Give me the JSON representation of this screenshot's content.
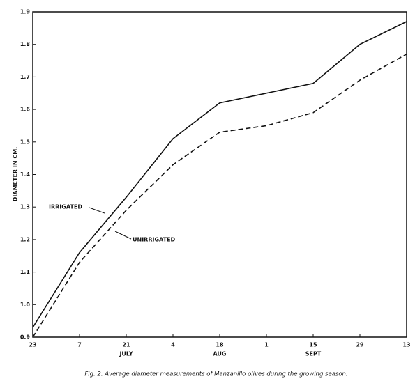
{
  "chart_data": {
    "type": "line",
    "caption": "Fig. 2. Average diameter measurements of Manzanillo olives during the growing season.",
    "ylabel": "DIAMETER IN CM.",
    "categories": [
      "23",
      "7",
      "21",
      "4",
      "18",
      "1",
      "15",
      "29",
      "13"
    ],
    "category_groups": [
      null,
      null,
      "JULY",
      null,
      "AUG",
      null,
      "SEPT",
      null,
      null
    ],
    "series": [
      {
        "name": "IRRIGATED",
        "color": "#111111",
        "style": "solid",
        "values": [
          0.93,
          1.16,
          1.33,
          1.51,
          1.62,
          1.65,
          1.68,
          1.8,
          1.87
        ]
      },
      {
        "name": "UNIRRIGATED",
        "color": "#111111",
        "style": "dashed",
        "values": [
          0.9,
          1.13,
          1.29,
          1.43,
          1.53,
          1.55,
          1.59,
          1.69,
          1.77
        ]
      }
    ],
    "ylim": [
      0.9,
      1.9
    ],
    "yticks": [
      0.9,
      {
        "value": 1,
        "label": "1.0"
      },
      1.1,
      1.2,
      1.3,
      1.4,
      1.5,
      1.6,
      1.7,
      1.8,
      1.9
    ]
  }
}
